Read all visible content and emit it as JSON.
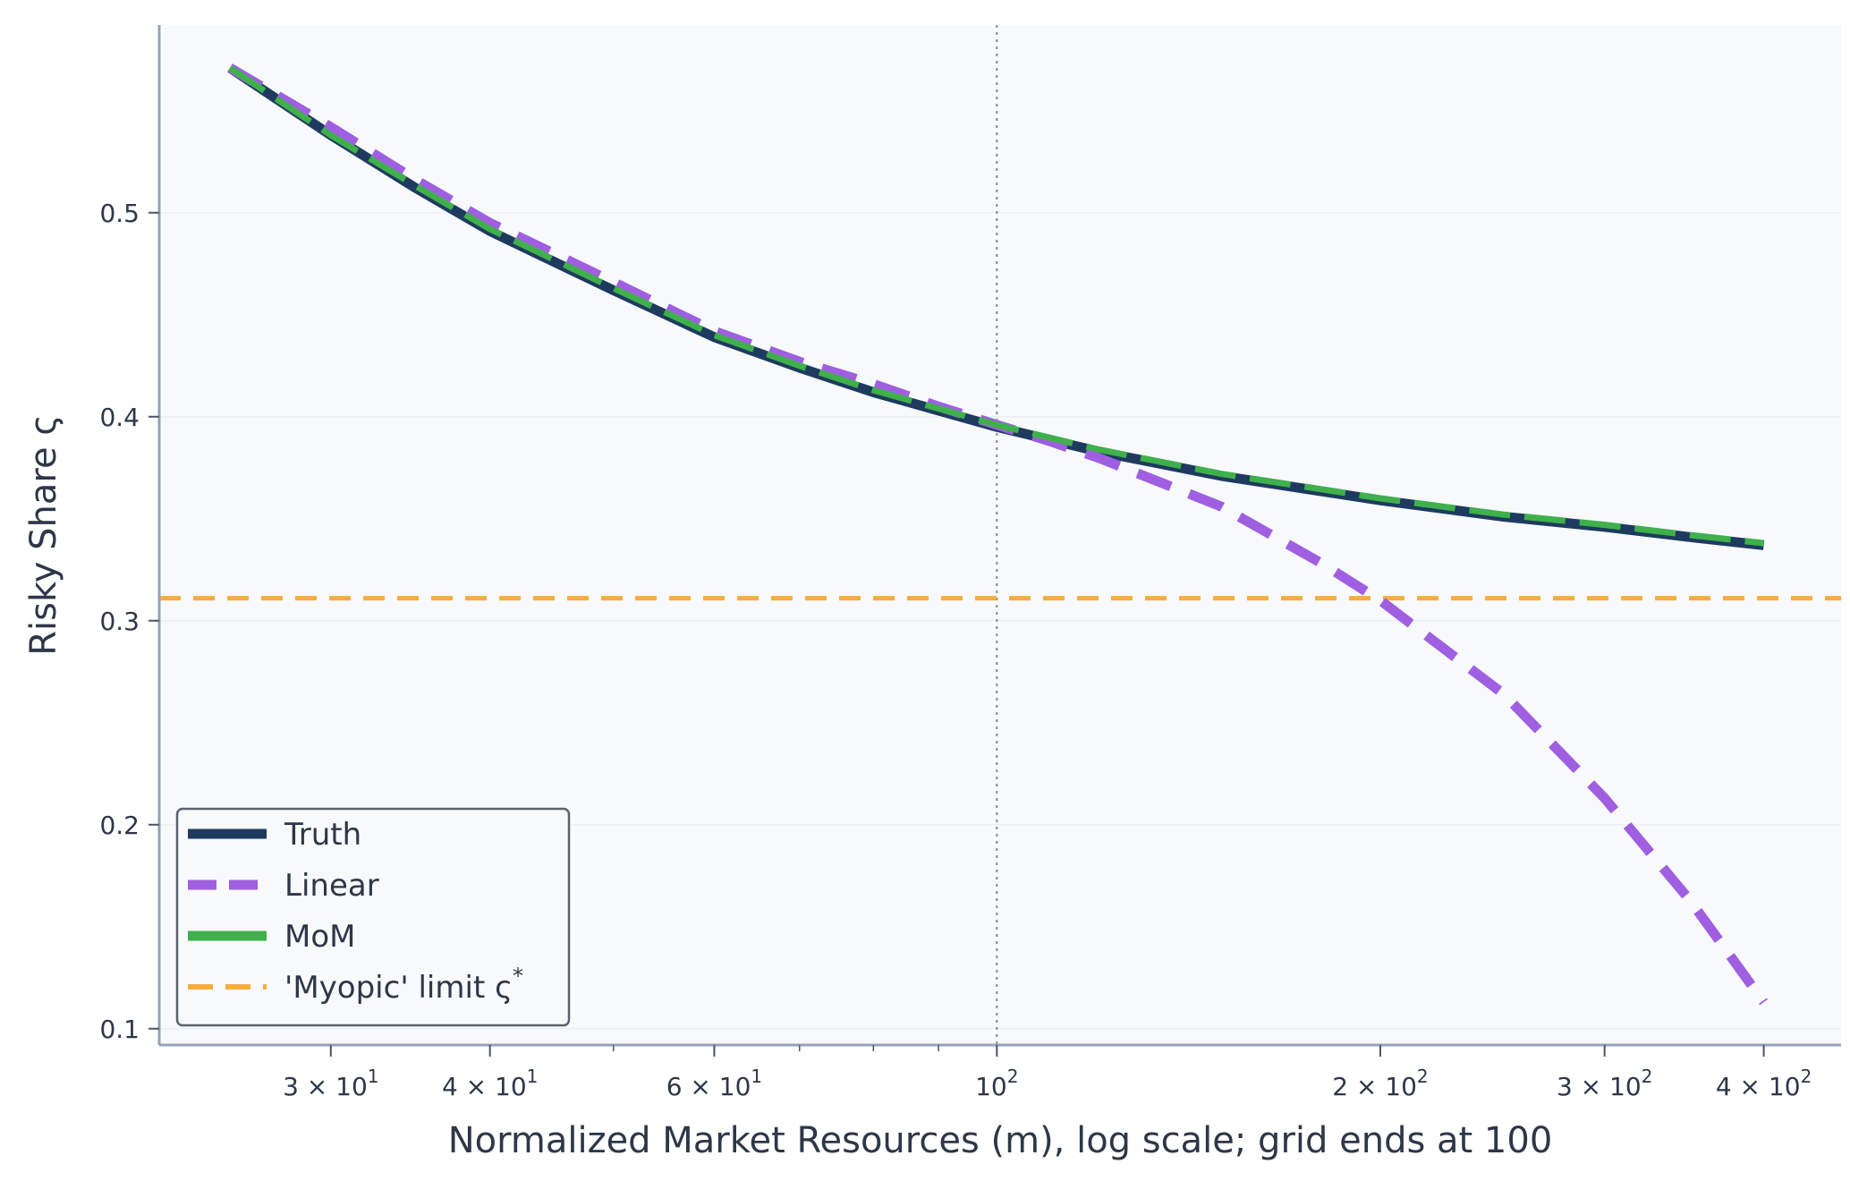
{
  "chart_data": {
    "type": "line",
    "title": "",
    "xlabel": "Normalized Market Resources (m), log scale; grid ends at 100",
    "ylabel": "Risky Share ς",
    "xscale": "log",
    "xlim": [
      22,
      460
    ],
    "ylim": [
      0.092,
      0.592
    ],
    "grid": "horizontal",
    "legend_position": "lower-left",
    "x_ticks": [
      {
        "value": 30,
        "base": "3 × 10",
        "exp": "1"
      },
      {
        "value": 40,
        "base": "4 × 10",
        "exp": "1"
      },
      {
        "value": 60,
        "base": "6 × 10",
        "exp": "1"
      },
      {
        "value": 100,
        "base": "10",
        "exp": "2"
      },
      {
        "value": 200,
        "base": "2 × 10",
        "exp": "2"
      },
      {
        "value": 300,
        "base": "3 × 10",
        "exp": "2"
      },
      {
        "value": 400,
        "base": "4 × 10",
        "exp": "2"
      }
    ],
    "y_ticks": [
      {
        "value": 0.1,
        "label": "0.1"
      },
      {
        "value": 0.2,
        "label": "0.2"
      },
      {
        "value": 0.3,
        "label": "0.3"
      },
      {
        "value": 0.4,
        "label": "0.4"
      },
      {
        "value": 0.5,
        "label": "0.5"
      }
    ],
    "vline": {
      "x": 100,
      "color": "#888888"
    },
    "hline": {
      "y": 0.311,
      "color": "#f6ad3c"
    },
    "series": [
      {
        "name": "Truth",
        "color": "#1e3a5f",
        "style": "solid",
        "x": [
          25,
          30,
          35,
          40,
          50,
          60,
          70,
          80,
          90,
          100,
          120,
          150,
          200,
          250,
          300,
          350,
          400
        ],
        "y": [
          0.571,
          0.538,
          0.512,
          0.491,
          0.462,
          0.439,
          0.424,
          0.412,
          0.403,
          0.395,
          0.383,
          0.371,
          0.359,
          0.351,
          0.346,
          0.341,
          0.337
        ]
      },
      {
        "name": "Linear",
        "color": "#9f5fe0",
        "style": "dashed",
        "x": [
          25,
          30,
          35,
          40,
          50,
          60,
          70,
          80,
          90,
          100,
          110,
          120,
          150,
          180,
          200,
          250,
          300,
          350,
          400
        ],
        "y": [
          0.571,
          0.542,
          0.516,
          0.495,
          0.466,
          0.442,
          0.427,
          0.416,
          0.405,
          0.396,
          0.388,
          0.38,
          0.356,
          0.328,
          0.31,
          0.264,
          0.213,
          0.163,
          0.113
        ]
      },
      {
        "name": "MoM",
        "color": "#3fb04c",
        "style": "dashed",
        "x": [
          25,
          30,
          35,
          40,
          50,
          60,
          70,
          80,
          90,
          100,
          120,
          150,
          200,
          250,
          300,
          350,
          400
        ],
        "y": [
          0.571,
          0.538,
          0.513,
          0.492,
          0.463,
          0.44,
          0.425,
          0.413,
          0.404,
          0.396,
          0.384,
          0.372,
          0.36,
          0.352,
          0.347,
          0.342,
          0.338
        ]
      },
      {
        "name": "'Myopic' limit ς",
        "name_sup": "*",
        "color": "#f6ad3c",
        "style": "dashed",
        "x": [
          22,
          460
        ],
        "y": [
          0.311,
          0.311
        ]
      }
    ]
  }
}
